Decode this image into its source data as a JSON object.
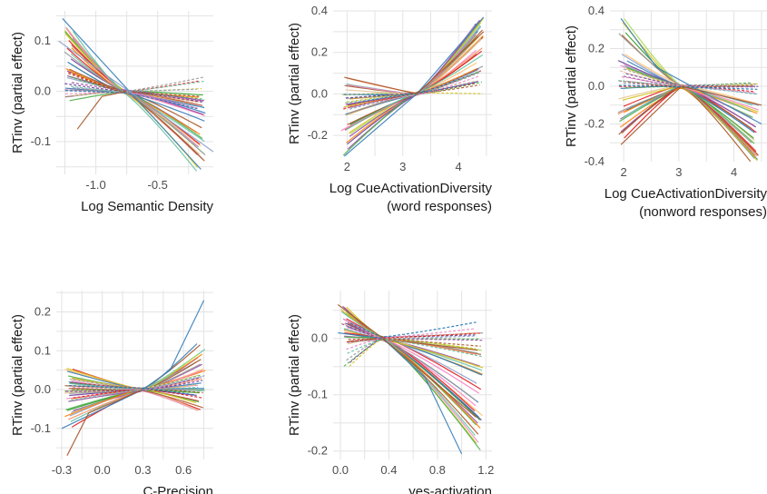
{
  "colors": [
    "#e41a1c",
    "#377eb8",
    "#4daf4a",
    "#984ea3",
    "#ff7f00",
    "#d4c21a",
    "#a65628",
    "#f781bf",
    "#999999",
    "#66c2a5",
    "#fc8d62",
    "#8da0cb",
    "#e78ac3",
    "#a6d854",
    "#e5c494",
    "#1f78b4",
    "#33a02c",
    "#6a3d9a",
    "#b15928",
    "#fdbf6f"
  ],
  "chart_data": [
    {
      "type": "line",
      "ylabel": "RTinv (partial effect)",
      "xlabel": [
        "Log Semantic Density"
      ],
      "xlim": [
        -1.32,
        -0.05
      ],
      "ylim": [
        -0.165,
        0.16
      ],
      "xticks": [
        -1.0,
        -0.5
      ],
      "xtick_labels": [
        "-1.0",
        "-0.5"
      ],
      "yticks": [
        -0.1,
        0.0,
        0.1
      ],
      "ytick_labels": [
        "-0.1",
        "0.0",
        "0.1"
      ],
      "pivot": [
        -0.78,
        0.0
      ],
      "n_solid": 30,
      "n_dashed": 12,
      "left_range": [
        -0.02,
        0.14
      ],
      "right_range": [
        -0.16,
        0.0
      ],
      "dashed_left_range": [
        -0.01,
        0.04
      ],
      "dashed_right_range": [
        -0.04,
        0.03
      ],
      "series_highlights": [
        {
          "x": [
            -1.27,
            -0.15
          ],
          "y": [
            0.145,
            -0.155
          ]
        },
        {
          "x": [
            -1.15,
            -0.95,
            -0.75
          ],
          "y": [
            -0.075,
            -0.01,
            0.0
          ]
        },
        {
          "x": [
            -1.3,
            -0.05
          ],
          "y": [
            0.1,
            -0.12
          ]
        }
      ]
    },
    {
      "type": "line",
      "ylabel": "RTinv (partial effect)",
      "xlabel": [
        "Log CueActivationDiversity",
        "(word responses)"
      ],
      "xlim": [
        1.75,
        4.6
      ],
      "ylim": [
        -0.3,
        0.4
      ],
      "xticks": [
        2,
        3,
        4
      ],
      "xtick_labels": [
        "2",
        "3",
        "4"
      ],
      "yticks": [
        -0.2,
        0.0,
        0.2,
        0.4
      ],
      "ytick_labels": [
        "-0.2",
        "0.0",
        "0.2",
        "0.4"
      ],
      "pivot": [
        3.25,
        0.0
      ],
      "n_solid": 30,
      "n_dashed": 12,
      "left_range": [
        -0.3,
        0.08
      ],
      "right_range": [
        0.08,
        0.37
      ],
      "dashed_left_range": [
        -0.08,
        0.0
      ],
      "dashed_right_range": [
        0.0,
        0.12
      ],
      "series_highlights": [
        {
          "x": [
            1.95,
            3.25,
            4.45
          ],
          "y": [
            -0.3,
            0.0,
            0.37
          ]
        },
        {
          "x": [
            1.95,
            3.25,
            4.45
          ],
          "y": [
            0.08,
            0.0,
            0.3
          ]
        }
      ]
    },
    {
      "type": "line",
      "ylabel": "RTinv (partial effect)",
      "xlabel": [
        "Log CueActivationDiversity",
        "(nonword responses)"
      ],
      "xlim": [
        1.75,
        4.6
      ],
      "ylim": [
        -0.4,
        0.4
      ],
      "xticks": [
        2,
        3,
        4
      ],
      "xtick_labels": [
        "2",
        "3",
        "4"
      ],
      "yticks": [
        -0.4,
        -0.2,
        0.0,
        0.2,
        0.4
      ],
      "ytick_labels": [
        "-0.4",
        "-0.2",
        "0.0",
        "0.2",
        "0.4"
      ],
      "pivot": [
        3.05,
        0.0
      ],
      "n_solid": 30,
      "n_dashed": 12,
      "left_range": [
        -0.3,
        0.36
      ],
      "right_range": [
        -0.4,
        -0.05
      ],
      "dashed_left_range": [
        -0.02,
        0.1
      ],
      "dashed_right_range": [
        -0.05,
        0.02
      ],
      "series_highlights": [
        {
          "x": [
            1.95,
            2.6,
            4.5
          ],
          "y": [
            0.36,
            0.1,
            -0.2
          ]
        },
        {
          "x": [
            1.95,
            3.05,
            4.5
          ],
          "y": [
            -0.31,
            0.0,
            -0.1
          ]
        }
      ]
    },
    {
      "type": "line",
      "ylabel": "RTinv (partial effect)",
      "xlabel": [
        "C-Precision"
      ],
      "xlim": [
        -0.34,
        0.82
      ],
      "ylim": [
        -0.18,
        0.255
      ],
      "xticks": [
        -0.3,
        0.0,
        0.3,
        0.6
      ],
      "xtick_labels": [
        "-0.3",
        "0.0",
        "0.3",
        "0.6"
      ],
      "yticks": [
        -0.1,
        0.0,
        0.1,
        0.2
      ],
      "ytick_labels": [
        "-0.1",
        "0.0",
        "0.1",
        "0.2"
      ],
      "pivot": [
        0.3,
        0.0
      ],
      "n_solid": 30,
      "n_dashed": 12,
      "left_range": [
        -0.1,
        0.06
      ],
      "right_range": [
        -0.07,
        0.12
      ],
      "dashed_left_range": [
        -0.03,
        0.03
      ],
      "dashed_right_range": [
        -0.03,
        0.04
      ],
      "series_highlights": [
        {
          "x": [
            -0.3,
            0.3,
            0.5,
            0.75
          ],
          "y": [
            -0.1,
            0.0,
            0.05,
            0.23
          ]
        },
        {
          "x": [
            -0.26,
            -0.1,
            0.3
          ],
          "y": [
            -0.17,
            -0.06,
            0.0
          ]
        }
      ]
    },
    {
      "type": "line",
      "ylabel": "RTinv (partial effect)",
      "xlabel": [
        "yes-activation"
      ],
      "xlim": [
        -0.06,
        1.25
      ],
      "ylim": [
        -0.215,
        0.085
      ],
      "xticks": [
        0.0,
        0.4,
        0.8,
        1.2
      ],
      "xtick_labels": [
        "0.0",
        "0.4",
        "0.8",
        "1.2"
      ],
      "yticks": [
        -0.2,
        -0.1,
        0.0
      ],
      "ytick_labels": [
        "-0.2",
        "-0.1",
        "0.0"
      ],
      "pivot": [
        0.35,
        0.0
      ],
      "n_solid": 30,
      "n_dashed": 12,
      "left_range": [
        -0.01,
        0.06
      ],
      "right_range": [
        -0.2,
        -0.02
      ],
      "dashed_left_range": [
        -0.05,
        0.03
      ],
      "dashed_right_range": [
        -0.04,
        0.03
      ],
      "series_highlights": [
        {
          "x": [
            -0.02,
            0.35,
            0.7,
            1.0
          ],
          "y": [
            0.01,
            0.0,
            -0.07,
            -0.205
          ]
        },
        {
          "x": [
            -0.02,
            0.35,
            1.12
          ],
          "y": [
            0.06,
            0.0,
            -0.14
          ]
        }
      ]
    }
  ]
}
